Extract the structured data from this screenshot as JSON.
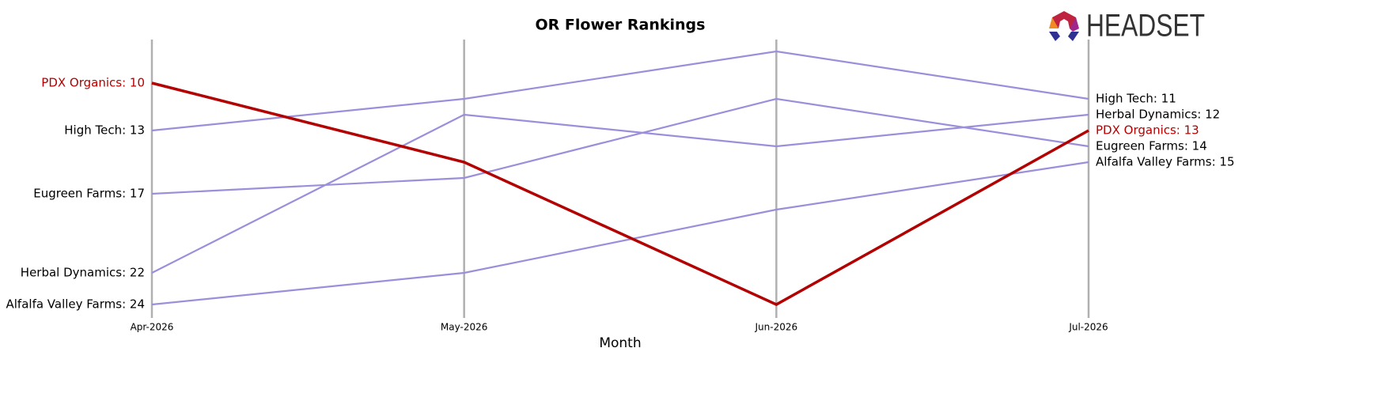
{
  "logo_text": "HEADSET",
  "chart_data": {
    "type": "line",
    "title": "OR Flower Rankings",
    "x_label": "Month",
    "categories": [
      "Apr-2026",
      "May-2026",
      "Jun-2026",
      "Jul-2026"
    ],
    "ylim": [
      25,
      7
    ],
    "series": [
      {
        "name": "High Tech",
        "color": "#9b8fdb",
        "values": [
          13,
          11,
          8,
          11
        ],
        "value_labels": [
          "High Tech: 13",
          null,
          null,
          "High Tech: 11"
        ]
      },
      {
        "name": "Eugreen Farms",
        "color": "#9b8fdb",
        "values": [
          17,
          16,
          11,
          14
        ],
        "value_labels": [
          "Eugreen Farms: 17",
          null,
          null,
          "Eugreen Farms: 14"
        ]
      },
      {
        "name": "Herbal Dynamics",
        "color": "#9b8fdb",
        "values": [
          22,
          12,
          14,
          12
        ],
        "value_labels": [
          "Herbal Dynamics: 22",
          null,
          null,
          "Herbal Dynamics: 12"
        ]
      },
      {
        "name": "Alfalfa Valley Farms",
        "color": "#9b8fdb",
        "values": [
          24,
          22,
          18,
          15
        ],
        "value_labels": [
          "Alfalfa Valley Farms: 24",
          null,
          null,
          "Alfalfa Valley Farms: 15"
        ]
      },
      {
        "name": "PDX Organics",
        "color": "#b30000",
        "highlight": true,
        "values": [
          10,
          15,
          24,
          13
        ],
        "value_labels": [
          "PDX Organics: 10",
          null,
          null,
          "PDX Organics: 13"
        ]
      }
    ]
  }
}
